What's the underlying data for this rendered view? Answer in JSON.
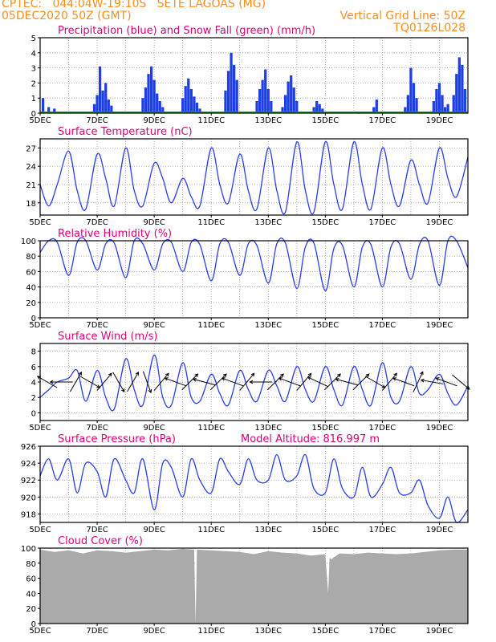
{
  "header": {
    "line1_left": "CPTEC:   044:04W-19:10S   SETE LAGOAS (MG)",
    "line2_left": "05DEC2020 50Z (GMT)",
    "line2_right": "Vertical Grid Line: 50Z",
    "line3_right": "TQ0126L028"
  },
  "chart_data": [
    {
      "type": "bar",
      "title": "Precipitation (blue) and Snow Fall (green) (mm/h)",
      "ylim": [
        0,
        5
      ],
      "yticks": [
        "0",
        "1",
        "2",
        "3",
        "4",
        "5"
      ],
      "xticks": [
        "5DEC",
        "7DEC",
        "9DEC",
        "11DEC",
        "13DEC",
        "15DEC",
        "17DEC",
        "19DEC"
      ],
      "colors": {
        "precip": "#1f3fe6",
        "snow": "#00aa00"
      },
      "series": [
        {
          "name": "Precipitation",
          "x_day": [
            5.1,
            5.3,
            5.5,
            6.9,
            7.0,
            7.1,
            7.2,
            7.3,
            7.4,
            7.5,
            8.6,
            8.7,
            8.8,
            8.9,
            9.0,
            9.1,
            9.2,
            9.3,
            10.0,
            10.1,
            10.2,
            10.3,
            10.4,
            10.5,
            10.6,
            11.5,
            11.6,
            11.7,
            11.8,
            11.9,
            12.6,
            12.7,
            12.8,
            12.9,
            13.0,
            13.1,
            13.5,
            13.6,
            13.7,
            13.8,
            13.9,
            14.0,
            14.6,
            14.7,
            14.8,
            14.9,
            16.7,
            16.8,
            17.8,
            17.9,
            18.0,
            18.1,
            18.2,
            18.8,
            18.9,
            19.0,
            19.1,
            19.2,
            19.3,
            19.5,
            19.6,
            19.7,
            19.8,
            19.9
          ],
          "values": [
            1.0,
            0.4,
            0.3,
            0.6,
            1.2,
            3.1,
            1.5,
            2.0,
            0.9,
            0.5,
            1.0,
            1.7,
            2.6,
            3.1,
            2.2,
            1.3,
            0.8,
            0.4,
            1.0,
            1.8,
            2.3,
            1.6,
            1.1,
            0.7,
            0.3,
            1.5,
            2.8,
            4.0,
            3.2,
            2.2,
            0.8,
            1.6,
            2.2,
            2.9,
            1.6,
            0.8,
            0.4,
            1.2,
            2.1,
            2.5,
            1.7,
            0.8,
            0.4,
            0.8,
            0.6,
            0.3,
            0.4,
            0.9,
            0.4,
            1.2,
            3.0,
            2.0,
            1.0,
            0.8,
            1.6,
            2.0,
            1.2,
            0.4,
            0.6,
            1.2,
            2.6,
            3.7,
            3.2,
            1.6
          ]
        }
      ]
    },
    {
      "type": "line",
      "title": "Surface Temperature (nC)",
      "ylim": [
        16,
        28.5
      ],
      "yticks": [
        "18",
        "21",
        "24",
        "27"
      ],
      "yvals": [
        18,
        21,
        24,
        27
      ],
      "xticks": [
        "5DEC",
        "7DEC",
        "9DEC",
        "11DEC",
        "13DEC",
        "15DEC",
        "17DEC",
        "19DEC"
      ],
      "series": [
        {
          "x_day": [
            5.0,
            5.3,
            5.6,
            6.0,
            6.3,
            6.6,
            7.0,
            7.3,
            7.6,
            8.0,
            8.3,
            8.6,
            9.0,
            9.3,
            9.6,
            10.0,
            10.3,
            10.6,
            11.0,
            11.3,
            11.6,
            12.0,
            12.3,
            12.6,
            13.0,
            13.3,
            13.6,
            14.0,
            14.3,
            14.6,
            15.0,
            15.3,
            15.6,
            16.0,
            16.3,
            16.6,
            17.0,
            17.3,
            17.6,
            18.0,
            18.3,
            18.6,
            19.0,
            19.3,
            19.6,
            20.0
          ],
          "values": [
            21,
            17.5,
            21,
            26.5,
            20,
            17,
            26,
            22,
            17.5,
            27,
            20,
            17.5,
            24.5,
            22,
            18,
            22,
            19,
            17.5,
            27,
            21,
            18,
            26,
            20,
            17,
            27,
            20,
            16.5,
            28,
            20,
            16.5,
            28,
            21,
            17,
            28,
            21,
            17,
            27,
            21,
            17.5,
            25,
            21,
            18,
            27,
            22,
            19,
            25.5
          ]
        }
      ]
    },
    {
      "type": "line",
      "title": "Relative Humidity (%)",
      "ylim": [
        0,
        100
      ],
      "yticks": [
        "0",
        "20",
        "40",
        "60",
        "80",
        "100"
      ],
      "yvals": [
        0,
        20,
        40,
        60,
        80,
        100
      ],
      "xticks": [
        "5DEC",
        "7DEC",
        "9DEC",
        "11DEC",
        "13DEC",
        "15DEC",
        "17DEC",
        "19DEC"
      ],
      "series": [
        {
          "x_day": [
            5.0,
            5.3,
            5.6,
            6.0,
            6.3,
            6.6,
            7.0,
            7.3,
            7.6,
            8.0,
            8.3,
            8.6,
            9.0,
            9.3,
            9.6,
            10.0,
            10.3,
            10.6,
            11.0,
            11.3,
            11.6,
            12.0,
            12.3,
            12.6,
            13.0,
            13.3,
            13.6,
            14.0,
            14.3,
            14.6,
            15.0,
            15.3,
            15.6,
            16.0,
            16.3,
            16.6,
            17.0,
            17.3,
            17.6,
            18.0,
            18.3,
            18.6,
            19.0,
            19.3,
            19.6,
            20.0
          ],
          "values": [
            85,
            100,
            98,
            55,
            98,
            100,
            62,
            96,
            97,
            52,
            100,
            96,
            62,
            96,
            98,
            60,
            98,
            95,
            48,
            96,
            98,
            55,
            96,
            94,
            45,
            96,
            97,
            38,
            92,
            97,
            35,
            90,
            94,
            40,
            92,
            95,
            40,
            92,
            96,
            50,
            95,
            100,
            42,
            100,
            100,
            65
          ]
        }
      ]
    },
    {
      "type": "line",
      "title": "Surface Wind (m/s)",
      "ylim": [
        -1,
        9
      ],
      "yticks": [
        "0",
        "2",
        "4",
        "6",
        "8"
      ],
      "yvals": [
        0,
        2,
        4,
        6,
        8
      ],
      "xticks": [
        "5DEC",
        "7DEC",
        "9DEC",
        "11DEC",
        "13DEC",
        "15DEC",
        "17DEC",
        "19DEC"
      ],
      "series": [
        {
          "x_day": [
            5.0,
            5.3,
            5.6,
            6.0,
            6.3,
            6.6,
            7.0,
            7.3,
            7.6,
            8.0,
            8.3,
            8.6,
            9.0,
            9.3,
            9.6,
            10.0,
            10.3,
            10.6,
            11.0,
            11.3,
            11.6,
            12.0,
            12.3,
            12.6,
            13.0,
            13.3,
            13.6,
            14.0,
            14.3,
            14.6,
            15.0,
            15.3,
            15.6,
            16.0,
            16.3,
            16.6,
            17.0,
            17.3,
            17.6,
            18.0,
            18.3,
            18.6,
            19.0,
            19.3,
            19.6,
            20.0
          ],
          "values": [
            2,
            3,
            4,
            4.5,
            5.5,
            1.5,
            5.5,
            2,
            0.5,
            7,
            3,
            1,
            7.5,
            2,
            1,
            6.5,
            2,
            1.5,
            5,
            2.5,
            1,
            5.5,
            3,
            1.5,
            5.5,
            3.5,
            1.5,
            6,
            3,
            1.5,
            6,
            3,
            1,
            6,
            3,
            1,
            6.5,
            2,
            1.5,
            6,
            2.5,
            3,
            5,
            2.5,
            1,
            3.5
          ]
        },
        {
          "name": "wind_direction_deg",
          "x_day": [
            5.25,
            5.75,
            6.25,
            6.75,
            7.25,
            7.75,
            8.25,
            8.75,
            9.25,
            9.75,
            10.25,
            10.75,
            11.25,
            11.75,
            12.25,
            12.75,
            13.25,
            13.75,
            14.25,
            14.75,
            15.25,
            15.75,
            16.25,
            16.75,
            17.25,
            17.75,
            18.25,
            18.75,
            19.25,
            19.75
          ],
          "values": [
            300,
            270,
            30,
            120,
            40,
            150,
            30,
            160,
            40,
            290,
            45,
            285,
            45,
            290,
            40,
            270,
            45,
            290,
            40,
            295,
            45,
            285,
            45,
            120,
            40,
            290,
            25,
            280,
            290,
            130
          ]
        }
      ]
    },
    {
      "type": "line",
      "title": "Surface Pressure (hPa)",
      "annotation": "Model Altitude: 816.997 m",
      "ylim": [
        917,
        926
      ],
      "yticks": [
        "918",
        "920",
        "922",
        "924",
        "926"
      ],
      "yvals": [
        918,
        920,
        922,
        924,
        926
      ],
      "xticks": [
        "5DEC",
        "7DEC",
        "9DEC",
        "11DEC",
        "13DEC",
        "15DEC",
        "17DEC",
        "19DEC"
      ],
      "series": [
        {
          "x_day": [
            5.0,
            5.3,
            5.6,
            6.0,
            6.3,
            6.6,
            7.0,
            7.3,
            7.6,
            8.0,
            8.3,
            8.6,
            9.0,
            9.3,
            9.6,
            10.0,
            10.3,
            10.6,
            11.0,
            11.3,
            11.6,
            12.0,
            12.3,
            12.6,
            13.0,
            13.3,
            13.6,
            14.0,
            14.3,
            14.6,
            15.0,
            15.3,
            15.6,
            16.0,
            16.3,
            16.6,
            17.0,
            17.3,
            17.6,
            18.0,
            18.3,
            18.6,
            19.0,
            19.3,
            19.6,
            20.0
          ],
          "values": [
            922.5,
            924.5,
            922,
            924.5,
            920.5,
            924,
            923,
            920,
            924.5,
            922,
            920.5,
            924.5,
            918.5,
            924,
            923.5,
            920,
            924.5,
            922,
            920.5,
            924.5,
            923,
            921.5,
            924.5,
            922,
            922,
            925,
            922,
            922.5,
            925,
            921,
            920.5,
            924.5,
            921,
            920,
            923.5,
            920,
            921.5,
            923.5,
            920.5,
            920.5,
            922,
            919,
            917.5,
            920,
            917,
            918.5
          ]
        }
      ]
    },
    {
      "type": "area",
      "title": "Cloud Cover (%)",
      "ylim": [
        0,
        100
      ],
      "yticks": [
        "0",
        "20",
        "40",
        "60",
        "80",
        "100"
      ],
      "yvals": [
        0,
        20,
        40,
        60,
        80,
        100
      ],
      "xticks": [
        "5DEC",
        "7DEC",
        "9DEC",
        "11DEC",
        "13DEC",
        "15DEC",
        "17DEC",
        "19DEC"
      ],
      "colors": {
        "fill": "#aaaaaa"
      },
      "series": [
        {
          "x_day": [
            5.0,
            5.5,
            6.0,
            6.5,
            7.0,
            7.5,
            8.0,
            8.5,
            9.0,
            9.5,
            10.0,
            10.4,
            10.45,
            10.5,
            11.0,
            11.5,
            12.0,
            12.5,
            13.0,
            13.5,
            14.0,
            14.5,
            15.0,
            15.1,
            15.15,
            15.2,
            15.5,
            16.0,
            16.5,
            17.0,
            17.5,
            18.0,
            18.5,
            19.0,
            19.5,
            20.0
          ],
          "values": [
            98,
            95,
            97,
            93,
            97,
            96,
            94,
            96,
            98,
            97,
            99,
            98,
            0,
            98,
            97,
            96,
            95,
            92,
            96,
            94,
            93,
            90,
            92,
            40,
            88,
            85,
            93,
            92,
            94,
            93,
            92,
            93,
            95,
            97,
            98,
            98
          ]
        }
      ]
    }
  ]
}
